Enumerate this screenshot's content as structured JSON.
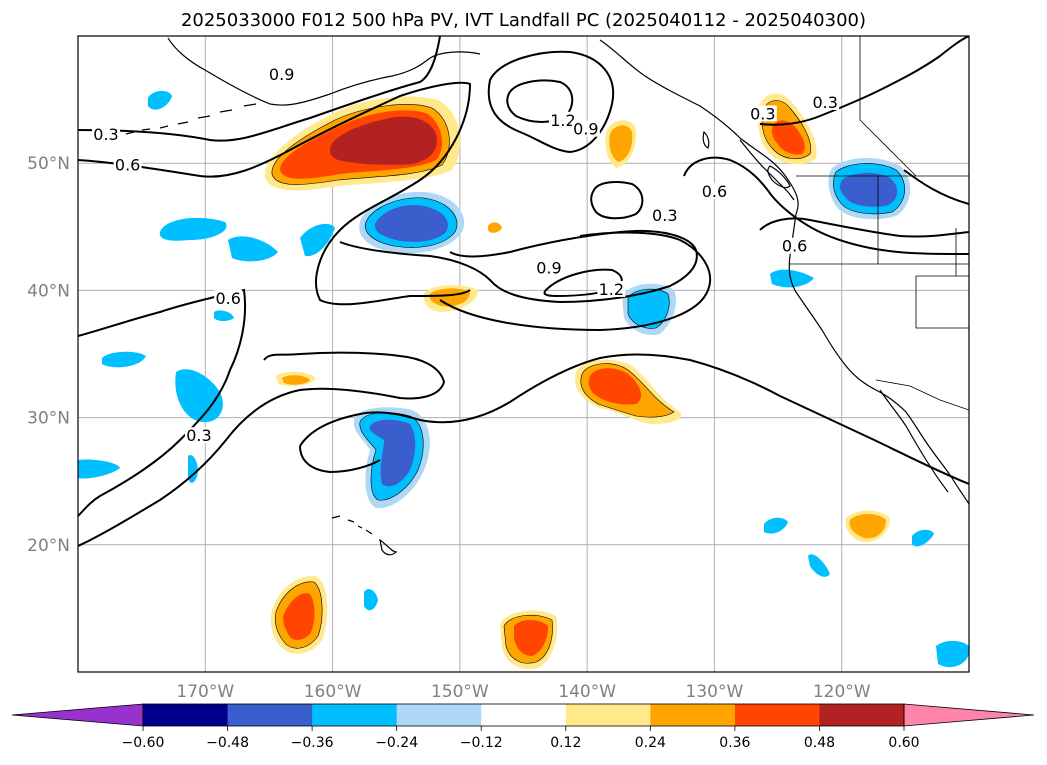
{
  "title": "2025033000 F012 500 hPa PV, IVT Landfall PC (2025040112 - 2025040300)",
  "map": {
    "lon_range": [
      -180,
      -110
    ],
    "lat_range": [
      10,
      60
    ],
    "lat_labels": [
      {
        "lat": 50,
        "text": "50°N"
      },
      {
        "lat": 40,
        "text": "40°N"
      },
      {
        "lat": 30,
        "text": "30°N"
      },
      {
        "lat": 20,
        "text": "20°N"
      }
    ],
    "lon_labels": [
      {
        "lon": -170,
        "text": "170°W"
      },
      {
        "lon": -160,
        "text": "160°W"
      },
      {
        "lon": -150,
        "text": "150°W"
      },
      {
        "lon": -140,
        "text": "140°W"
      },
      {
        "lon": -130,
        "text": "130°W"
      },
      {
        "lon": -120,
        "text": "120°W"
      }
    ],
    "contour_labels": [
      {
        "text": "0.9",
        "lon": -164.0,
        "lat": 56.7
      },
      {
        "text": "0.3",
        "lon": -177.8,
        "lat": 52.0
      },
      {
        "text": "0.6",
        "lon": -176.1,
        "lat": 49.6
      },
      {
        "text": "1.2",
        "lon": -141.9,
        "lat": 53.1
      },
      {
        "text": "0.9",
        "lon": -140.1,
        "lat": 52.4
      },
      {
        "text": "0.3",
        "lon": -133.9,
        "lat": 45.6
      },
      {
        "text": "0.6",
        "lon": -130.0,
        "lat": 47.5
      },
      {
        "text": "0.3",
        "lon": -126.2,
        "lat": 53.6
      },
      {
        "text": "0.3",
        "lon": -121.3,
        "lat": 54.5
      },
      {
        "text": "0.6",
        "lon": -123.7,
        "lat": 43.2
      },
      {
        "text": "0.9",
        "lon": -143.0,
        "lat": 41.5
      },
      {
        "text": "1.2",
        "lon": -138.1,
        "lat": 39.8
      },
      {
        "text": "0.6",
        "lon": -168.2,
        "lat": 39.1
      },
      {
        "text": "0.3",
        "lon": -170.5,
        "lat": 28.3
      }
    ],
    "colors": {
      "neg_060": "#9932cc",
      "neg_048": "#00008b",
      "neg_036": "#3a5fcd",
      "neg_024": "#00bfff",
      "neg_012": "#add8f6",
      "neutral": "#ffffff",
      "pos_012": "#ffe98b",
      "pos_024": "#ffa500",
      "pos_036": "#ff4500",
      "pos_048": "#b22222",
      "pos_060": "#ff84aa"
    }
  },
  "colorbar": {
    "ticks": [
      "−0.60",
      "−0.48",
      "−0.36",
      "−0.24",
      "−0.12",
      "0.12",
      "0.24",
      "0.36",
      "0.48",
      "0.60"
    ],
    "levels": [
      "neg_060",
      "neg_048",
      "neg_036",
      "neg_024",
      "neg_012",
      "neutral",
      "pos_012",
      "pos_024",
      "pos_036",
      "pos_048",
      "pos_060"
    ]
  }
}
